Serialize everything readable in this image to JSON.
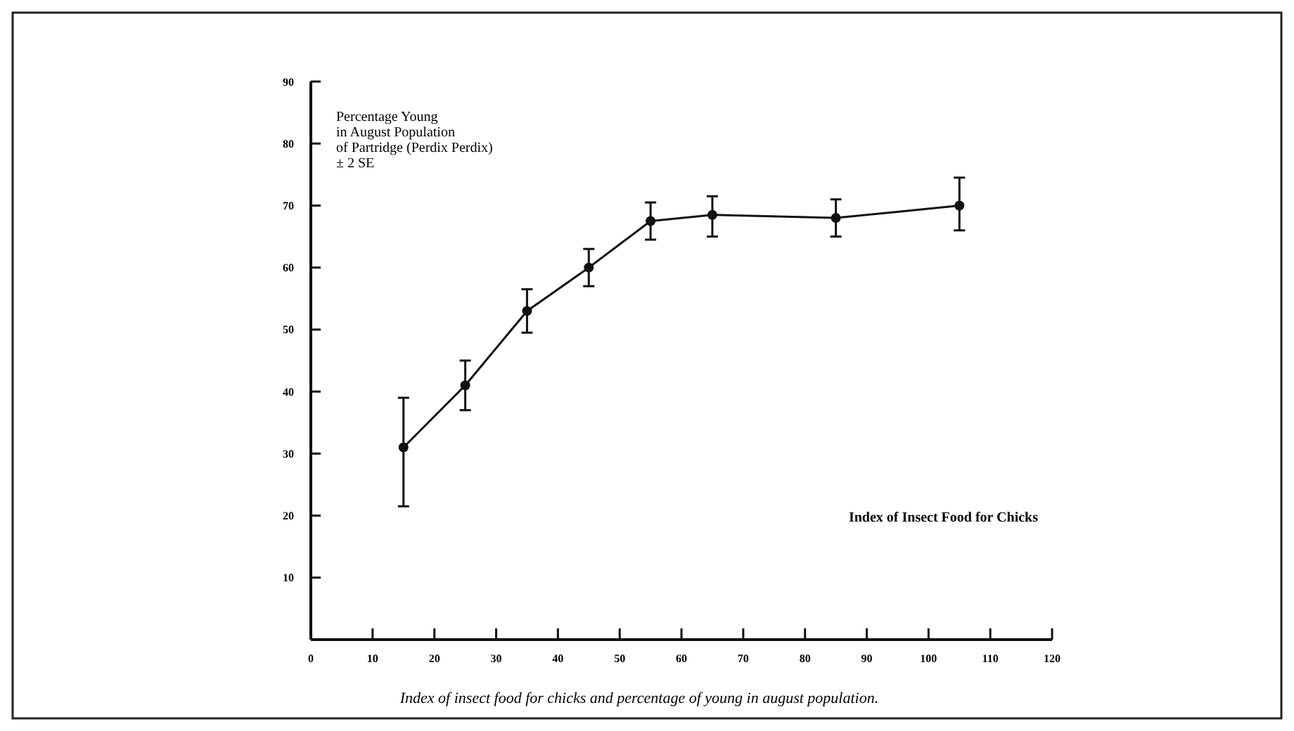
{
  "chart_data": {
    "type": "line",
    "ylabel": "Percentage Young\nin August Population\nof Partridge (Perdix Perdix)\n± 2 SE",
    "xlabel": "Index of Insect Food for Chicks",
    "annotations": [
      "Index of insect food for chicks and percentage of young in august population."
    ],
    "x": [
      15,
      25,
      35,
      45,
      55,
      65,
      85,
      105
    ],
    "values": [
      31,
      41,
      53,
      60,
      67.5,
      68.5,
      68,
      70
    ],
    "errors": [
      [
        21.5,
        39
      ],
      [
        37,
        45
      ],
      [
        49.5,
        56.5
      ],
      [
        57,
        63
      ],
      [
        64.5,
        70.5
      ],
      [
        65,
        71.5
      ],
      [
        65,
        71
      ],
      [
        66,
        74.5
      ]
    ],
    "color": "#111111",
    "marker": "circle",
    "line_style": "solid",
    "grid": false,
    "xlim": [
      0,
      120
    ],
    "xticks": [
      0,
      10,
      20,
      30,
      40,
      50,
      60,
      70,
      80,
      90,
      100,
      110,
      120
    ],
    "ylim": [
      0,
      90
    ],
    "yticks": [
      {
        "value": 0,
        "label": null
      },
      10,
      20,
      30,
      40,
      50,
      60,
      70,
      80,
      90
    ]
  }
}
